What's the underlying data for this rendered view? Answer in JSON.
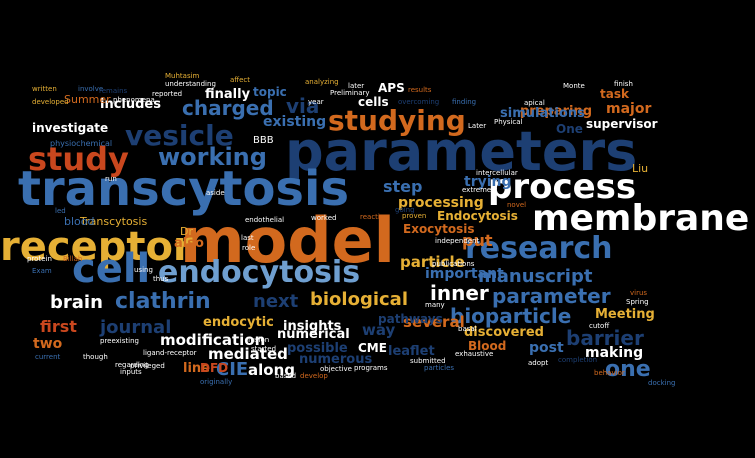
{
  "colors": {
    "background": "#000000",
    "dark_blue": "#1d3f73",
    "mid_blue": "#3a6fb0",
    "light_blue": "#6f9fd0",
    "orange": "#d2691e",
    "red_orange": "#c9471e",
    "gold": "#e6b035",
    "white": "#ffffff"
  },
  "words": [
    {
      "text": "parameters",
      "size": 54,
      "color": "dark_blue"
    },
    {
      "text": "transcytosis",
      "size": 48,
      "color": "mid_blue"
    },
    {
      "text": "model",
      "size": 62,
      "color": "orange"
    },
    {
      "text": "receptor",
      "size": 40,
      "color": "gold"
    },
    {
      "text": "cell",
      "size": 40,
      "color": "mid_blue"
    },
    {
      "text": "membrane",
      "size": 36,
      "color": "white"
    },
    {
      "text": "process",
      "size": 34,
      "color": "white"
    },
    {
      "text": "endocytosis",
      "size": 30,
      "color": "light_blue"
    },
    {
      "text": "research",
      "size": 30,
      "color": "mid_blue"
    },
    {
      "text": "study",
      "size": 32,
      "color": "red_orange"
    },
    {
      "text": "vesicle",
      "size": 28,
      "color": "dark_blue"
    },
    {
      "text": "studying",
      "size": 28,
      "color": "orange"
    },
    {
      "text": "working",
      "size": 24,
      "color": "mid_blue"
    },
    {
      "text": "charged",
      "size": 20,
      "color": "mid_blue"
    },
    {
      "text": "via",
      "size": 20,
      "color": "dark_blue"
    },
    {
      "text": "clathrin",
      "size": 22,
      "color": "mid_blue"
    },
    {
      "text": "brain",
      "size": 18,
      "color": "white"
    },
    {
      "text": "parameter",
      "size": 20,
      "color": "mid_blue"
    },
    {
      "text": "bioparticle",
      "size": 20,
      "color": "mid_blue"
    },
    {
      "text": "biological",
      "size": 18,
      "color": "gold"
    },
    {
      "text": "inner",
      "size": 20,
      "color": "white"
    },
    {
      "text": "manuscript",
      "size": 18,
      "color": "mid_blue"
    },
    {
      "text": "barrier",
      "size": 20,
      "color": "dark_blue"
    },
    {
      "text": "one",
      "size": 22,
      "color": "mid_blue"
    },
    {
      "text": "next",
      "size": 18,
      "color": "dark_blue"
    },
    {
      "text": "journal",
      "size": 18,
      "color": "dark_blue"
    },
    {
      "text": "first",
      "size": 16,
      "color": "red_orange"
    },
    {
      "text": "two",
      "size": 14,
      "color": "orange"
    },
    {
      "text": "modification",
      "size": 15,
      "color": "white"
    },
    {
      "text": "mediated",
      "size": 15,
      "color": "white"
    },
    {
      "text": "endocytic",
      "size": 13,
      "color": "gold"
    },
    {
      "text": "numerical",
      "size": 13,
      "color": "white"
    },
    {
      "text": "CIE",
      "size": 18,
      "color": "mid_blue"
    },
    {
      "text": "along",
      "size": 15,
      "color": "white"
    },
    {
      "text": "line",
      "size": 13,
      "color": "orange"
    },
    {
      "text": "DFD",
      "size": 12,
      "color": "red_orange"
    },
    {
      "text": "possible",
      "size": 13,
      "color": "dark_blue"
    },
    {
      "text": "numerous",
      "size": 13,
      "color": "dark_blue"
    },
    {
      "text": "CME",
      "size": 12,
      "color": "white"
    },
    {
      "text": "leaflet",
      "size": 13,
      "color": "dark_blue"
    },
    {
      "text": "Blood",
      "size": 12,
      "color": "orange"
    },
    {
      "text": "discovered",
      "size": 13,
      "color": "gold"
    },
    {
      "text": "post",
      "size": 14,
      "color": "mid_blue"
    },
    {
      "text": "making",
      "size": 14,
      "color": "white"
    },
    {
      "text": "several",
      "size": 15,
      "color": "orange"
    },
    {
      "text": "way",
      "size": 15,
      "color": "dark_blue"
    },
    {
      "text": "Meeting",
      "size": 13,
      "color": "gold"
    },
    {
      "text": "important",
      "size": 14,
      "color": "mid_blue"
    },
    {
      "text": "particle",
      "size": 15,
      "color": "gold"
    },
    {
      "text": "processing",
      "size": 14,
      "color": "gold"
    },
    {
      "text": "trying",
      "size": 14,
      "color": "mid_blue"
    },
    {
      "text": "step",
      "size": 16,
      "color": "mid_blue"
    },
    {
      "text": "put",
      "size": 16,
      "color": "orange"
    },
    {
      "text": "Exocytosis",
      "size": 12,
      "color": "orange"
    },
    {
      "text": "Endocytosis",
      "size": 12,
      "color": "gold"
    },
    {
      "text": "pathways",
      "size": 12,
      "color": "dark_blue"
    },
    {
      "text": "insights",
      "size": 13,
      "color": "white"
    },
    {
      "text": "also",
      "size": 13,
      "color": "orange"
    },
    {
      "text": "Dr",
      "size": 11,
      "color": "gold"
    },
    {
      "text": "Transcytosis",
      "size": 11,
      "color": "gold"
    },
    {
      "text": "blood",
      "size": 11,
      "color": "mid_blue"
    },
    {
      "text": "Liu",
      "size": 11,
      "color": "gold"
    },
    {
      "text": "existing",
      "size": 14,
      "color": "mid_blue"
    },
    {
      "text": "includes",
      "size": 13,
      "color": "white"
    },
    {
      "text": "investigate",
      "size": 12,
      "color": "white"
    },
    {
      "text": "finally",
      "size": 13,
      "color": "white"
    },
    {
      "text": "topic",
      "size": 12,
      "color": "mid_blue"
    },
    {
      "text": "cells",
      "size": 12,
      "color": "white"
    },
    {
      "text": "APS",
      "size": 12,
      "color": "white"
    },
    {
      "text": "preparing",
      "size": 13,
      "color": "orange"
    },
    {
      "text": "task",
      "size": 12,
      "color": "orange"
    },
    {
      "text": "major",
      "size": 14,
      "color": "orange"
    },
    {
      "text": "simulations",
      "size": 13,
      "color": "mid_blue"
    },
    {
      "text": "One",
      "size": 12,
      "color": "dark_blue"
    },
    {
      "text": "supervisor",
      "size": 12,
      "color": "white"
    },
    {
      "text": "BBB",
      "size": 10,
      "color": "white"
    },
    {
      "text": "Summer",
      "size": 11,
      "color": "orange"
    },
    {
      "text": "physiochemical",
      "size": 8,
      "color": "mid_blue"
    },
    {
      "text": "Muhtasim",
      "size": 7,
      "color": "gold"
    },
    {
      "text": "reported",
      "size": 7,
      "color": "white"
    },
    {
      "text": "affect",
      "size": 7,
      "color": "gold"
    },
    {
      "text": "analyzing",
      "size": 7,
      "color": "gold"
    },
    {
      "text": "later",
      "size": 7,
      "color": "white"
    },
    {
      "text": "Preliminary",
      "size": 7,
      "color": "white"
    },
    {
      "text": "year",
      "size": 7,
      "color": "white"
    },
    {
      "text": "results",
      "size": 7,
      "color": "orange"
    },
    {
      "text": "overcoming",
      "size": 7,
      "color": "dark_blue"
    },
    {
      "text": "finding",
      "size": 7,
      "color": "mid_blue"
    },
    {
      "text": "apical",
      "size": 7,
      "color": "white"
    },
    {
      "text": "Later",
      "size": 7,
      "color": "white"
    },
    {
      "text": "Physical",
      "size": 7,
      "color": "white"
    },
    {
      "text": "Monte",
      "size": 7,
      "color": "white"
    },
    {
      "text": "finish",
      "size": 7,
      "color": "white"
    },
    {
      "text": "written",
      "size": 7,
      "color": "gold"
    },
    {
      "text": "involve",
      "size": 7,
      "color": "mid_blue"
    },
    {
      "text": "remains",
      "size": 7,
      "color": "dark_blue"
    },
    {
      "text": "understanding",
      "size": 7,
      "color": "white"
    },
    {
      "text": "phenomena",
      "size": 7,
      "color": "white"
    },
    {
      "text": "developed",
      "size": 7,
      "color": "gold"
    },
    {
      "text": "aside",
      "size": 7,
      "color": "white"
    },
    {
      "text": "run",
      "size": 7,
      "color": "white"
    },
    {
      "text": "extremely",
      "size": 7,
      "color": "white"
    },
    {
      "text": "intercellular",
      "size": 7,
      "color": "white"
    },
    {
      "text": "novel",
      "size": 7,
      "color": "orange"
    },
    {
      "text": "endothelial",
      "size": 7,
      "color": "white"
    },
    {
      "text": "worked",
      "size": 7,
      "color": "white"
    },
    {
      "text": "reaction",
      "size": 7,
      "color": "orange"
    },
    {
      "text": "going",
      "size": 7,
      "color": "dark_blue"
    },
    {
      "text": "proven",
      "size": 7,
      "color": "gold"
    },
    {
      "text": "last",
      "size": 7,
      "color": "white"
    },
    {
      "text": "role",
      "size": 7,
      "color": "white"
    },
    {
      "text": "led",
      "size": 7,
      "color": "mid_blue"
    },
    {
      "text": "independent",
      "size": 7,
      "color": "white"
    },
    {
      "text": "publications",
      "size": 7,
      "color": "white"
    },
    {
      "text": "protein",
      "size": 7,
      "color": "white"
    },
    {
      "text": "Billah",
      "size": 7,
      "color": "orange"
    },
    {
      "text": "Exam",
      "size": 7,
      "color": "mid_blue"
    },
    {
      "text": "using",
      "size": 7,
      "color": "white"
    },
    {
      "text": "thus",
      "size": 7,
      "color": "white"
    },
    {
      "text": "virus",
      "size": 7,
      "color": "orange"
    },
    {
      "text": "Spring",
      "size": 7,
      "color": "white"
    },
    {
      "text": "many",
      "size": 7,
      "color": "white"
    },
    {
      "text": "fusion",
      "size": 7,
      "color": "white"
    },
    {
      "text": "started",
      "size": 7,
      "color": "white"
    },
    {
      "text": "basal",
      "size": 7,
      "color": "white"
    },
    {
      "text": "cutoff",
      "size": 7,
      "color": "white"
    },
    {
      "text": "preexisting",
      "size": 7,
      "color": "white"
    },
    {
      "text": "ligand-receptor",
      "size": 7,
      "color": "white"
    },
    {
      "text": "exhaustive",
      "size": 7,
      "color": "white"
    },
    {
      "text": "though",
      "size": 7,
      "color": "white"
    },
    {
      "text": "regarding",
      "size": 7,
      "color": "white"
    },
    {
      "text": "privileged",
      "size": 7,
      "color": "white"
    },
    {
      "text": "current",
      "size": 7,
      "color": "mid_blue"
    },
    {
      "text": "objective",
      "size": 7,
      "color": "white"
    },
    {
      "text": "submitted",
      "size": 7,
      "color": "white"
    },
    {
      "text": "adopt",
      "size": 7,
      "color": "white"
    },
    {
      "text": "inputs",
      "size": 7,
      "color": "white"
    },
    {
      "text": "develop",
      "size": 7,
      "color": "orange"
    },
    {
      "text": "programs",
      "size": 7,
      "color": "white"
    },
    {
      "text": "particles",
      "size": 7,
      "color": "mid_blue"
    },
    {
      "text": "completion",
      "size": 7,
      "color": "dark_blue"
    },
    {
      "text": "behavior",
      "size": 7,
      "color": "orange"
    },
    {
      "text": "originally",
      "size": 7,
      "color": "mid_blue"
    },
    {
      "text": "based",
      "size": 7,
      "color": "white"
    },
    {
      "text": "docking",
      "size": 7,
      "color": "mid_blue"
    }
  ]
}
